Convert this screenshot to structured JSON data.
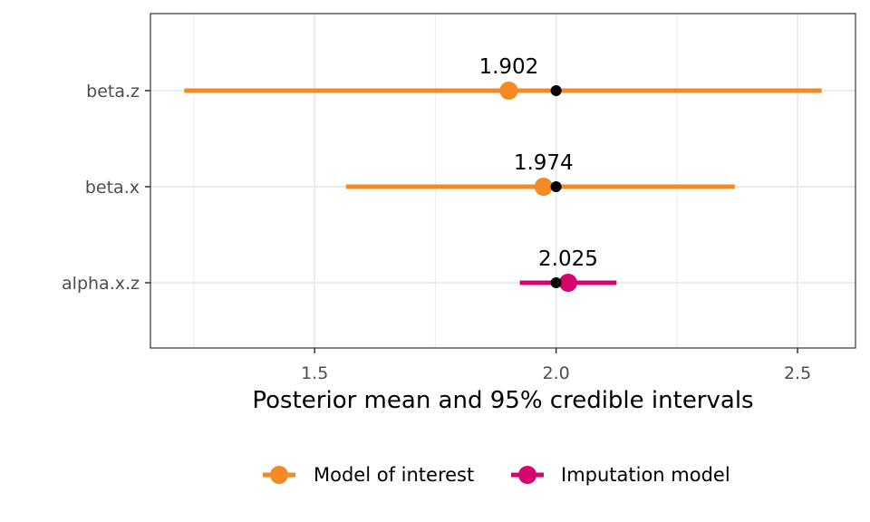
{
  "chart_data": {
    "type": "forest",
    "xlabel": "Posterior mean and 95% credible intervals",
    "ylabel": "",
    "xlim": [
      1.16,
      2.62
    ],
    "x_ticks": [
      1.5,
      2.0,
      2.5
    ],
    "x_tick_labels": [
      "1.5",
      "2.0",
      "2.5"
    ],
    "x_minor_ticks": [
      1.25,
      1.75,
      2.25
    ],
    "grid": true,
    "reference_value": 2.0,
    "legend_position": "bottom",
    "colors": {
      "Model of interest": "#f58a24",
      "Imputation model": "#d6056e",
      "reference": "#000000"
    },
    "legend": [
      {
        "label": "Model of interest",
        "color": "#f58a24"
      },
      {
        "label": "Imputation model",
        "color": "#d6056e"
      }
    ],
    "parameters": [
      {
        "name": "beta.z",
        "group": "Model of interest",
        "mean": 1.902,
        "mean_label": "1.902",
        "lower": 1.23,
        "upper": 2.55,
        "true_value": 2.0
      },
      {
        "name": "beta.x",
        "group": "Model of interest",
        "mean": 1.974,
        "mean_label": "1.974",
        "lower": 1.565,
        "upper": 2.37,
        "true_value": 2.0
      },
      {
        "name": "alpha.x.z",
        "group": "Imputation model",
        "mean": 2.025,
        "mean_label": "2.025",
        "lower": 1.925,
        "upper": 2.125,
        "true_value": 2.0
      }
    ]
  }
}
